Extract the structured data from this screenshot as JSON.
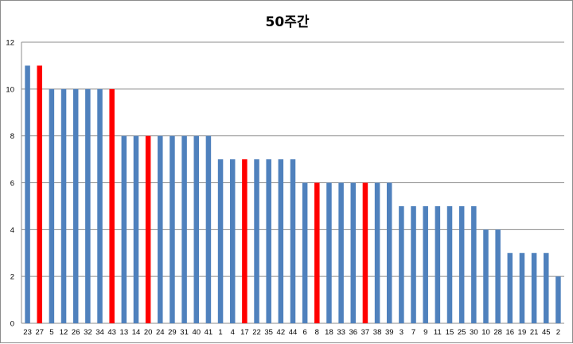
{
  "chart_data": {
    "type": "bar",
    "title": "50주간",
    "xlabel": "",
    "ylabel": "",
    "ylim": [
      0,
      12
    ],
    "yticks": [
      0,
      2,
      4,
      6,
      8,
      10,
      12
    ],
    "grid": true,
    "legend": "none",
    "colors": {
      "default": "#4f81bd",
      "highlight": "#ff0000"
    },
    "categories": [
      "23",
      "27",
      "5",
      "12",
      "26",
      "32",
      "34",
      "43",
      "13",
      "14",
      "20",
      "24",
      "29",
      "31",
      "40",
      "41",
      "1",
      "4",
      "17",
      "22",
      "35",
      "42",
      "44",
      "6",
      "8",
      "18",
      "33",
      "36",
      "37",
      "38",
      "39",
      "3",
      "7",
      "9",
      "11",
      "15",
      "25",
      "30",
      "10",
      "28",
      "16",
      "19",
      "21",
      "45",
      "2"
    ],
    "values": [
      11,
      11,
      10,
      10,
      10,
      10,
      10,
      10,
      8,
      8,
      8,
      8,
      8,
      8,
      8,
      8,
      7,
      7,
      7,
      7,
      7,
      7,
      7,
      6,
      6,
      6,
      6,
      6,
      6,
      6,
      6,
      5,
      5,
      5,
      5,
      5,
      5,
      5,
      4,
      4,
      3,
      3,
      3,
      3,
      2
    ],
    "highlighted": [
      "27",
      "43",
      "20",
      "17",
      "8",
      "37"
    ]
  }
}
